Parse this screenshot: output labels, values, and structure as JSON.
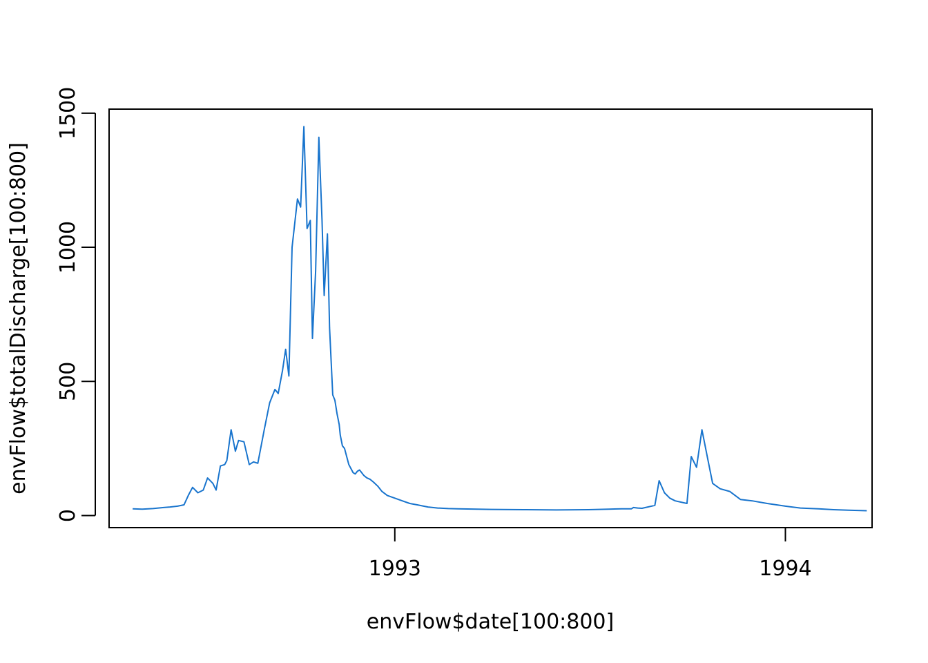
{
  "chart_data": {
    "type": "line",
    "title": "",
    "xlabel": "envFlow$date[100:800]",
    "ylabel": "envFlow$totalDischarge[100:800]",
    "x_type": "date",
    "xlim": [
      "1992-04-09",
      "1994-03-23"
    ],
    "ylim": [
      -45,
      1515
    ],
    "x_ticks": [
      {
        "value": "1993-01-01",
        "label": "1993"
      },
      {
        "value": "1994-01-01",
        "label": "1994"
      }
    ],
    "y_ticks": [
      0,
      500,
      1000,
      1500
    ],
    "grid": false,
    "legend": "none",
    "line_color": "#1874CD",
    "series": [
      {
        "x": [
          "1992-05-01",
          "1992-05-10",
          "1992-05-20",
          "1992-05-30",
          "1992-06-05",
          "1992-06-12",
          "1992-06-18",
          "1992-06-22",
          "1992-06-26",
          "1992-07-01",
          "1992-07-06",
          "1992-07-10",
          "1992-07-15",
          "1992-07-18",
          "1992-07-22",
          "1992-07-26",
          "1992-07-28",
          "1992-08-01",
          "1992-08-05",
          "1992-08-08",
          "1992-08-13",
          "1992-08-18",
          "1992-08-22",
          "1992-08-26",
          "1992-09-01",
          "1992-09-06",
          "1992-09-11",
          "1992-09-14",
          "1992-09-18",
          "1992-09-21",
          "1992-09-24",
          "1992-09-27",
          "1992-10-02",
          "1992-10-05",
          "1992-10-08",
          "1992-10-11",
          "1992-10-14",
          "1992-10-16",
          "1992-10-19",
          "1992-10-22",
          "1992-10-25",
          "1992-10-27",
          "1992-10-30",
          "1992-11-01",
          "1992-11-04",
          "1992-11-06",
          "1992-11-08",
          "1992-11-10",
          "1992-11-11",
          "1992-11-13",
          "1992-11-15",
          "1992-11-17",
          "1992-11-19",
          "1992-11-21",
          "1992-11-23",
          "1992-11-25",
          "1992-11-27",
          "1992-11-29",
          "1992-12-01",
          "1992-12-03",
          "1992-12-06",
          "1992-12-09",
          "1992-12-12",
          "1992-12-16",
          "1992-12-20",
          "1992-12-25",
          "1993-01-01",
          "1993-01-08",
          "1993-01-15",
          "1993-01-22",
          "1993-02-01",
          "1993-02-10",
          "1993-02-20",
          "1993-03-01",
          "1993-04-01",
          "1993-05-01",
          "1993-06-01",
          "1993-07-01",
          "1993-07-20",
          "1993-08-01",
          "1993-08-10",
          "1993-08-12",
          "1993-08-16",
          "1993-08-20",
          "1993-09-01",
          "1993-09-05",
          "1993-09-10",
          "1993-09-15",
          "1993-09-20",
          "1993-10-01",
          "1993-10-05",
          "1993-10-10",
          "1993-10-15",
          "1993-10-20",
          "1993-10-25",
          "1993-11-01",
          "1993-11-10",
          "1993-11-20",
          "1993-12-01",
          "1993-12-15",
          "1994-01-01",
          "1994-01-15",
          "1994-02-01",
          "1994-02-15",
          "1994-03-01",
          "1994-03-18"
        ],
        "y": [
          25,
          24,
          26,
          30,
          32,
          35,
          40,
          75,
          105,
          85,
          95,
          140,
          120,
          95,
          185,
          190,
          205,
          320,
          240,
          280,
          275,
          190,
          200,
          195,
          320,
          420,
          470,
          455,
          540,
          620,
          520,
          1000,
          1180,
          1150,
          1450,
          1070,
          1100,
          660,
          910,
          1410,
          1100,
          820,
          1050,
          700,
          450,
          430,
          380,
          340,
          300,
          260,
          250,
          220,
          190,
          175,
          160,
          155,
          165,
          170,
          160,
          150,
          140,
          135,
          125,
          110,
          90,
          75,
          65,
          55,
          45,
          40,
          32,
          28,
          26,
          25,
          23,
          22,
          21,
          22,
          24,
          25,
          25,
          30,
          28,
          27,
          38,
          130,
          85,
          65,
          55,
          45,
          220,
          180,
          320,
          220,
          120,
          100,
          90,
          60,
          55,
          45,
          35,
          28,
          25,
          22,
          20,
          18
        ]
      }
    ]
  }
}
